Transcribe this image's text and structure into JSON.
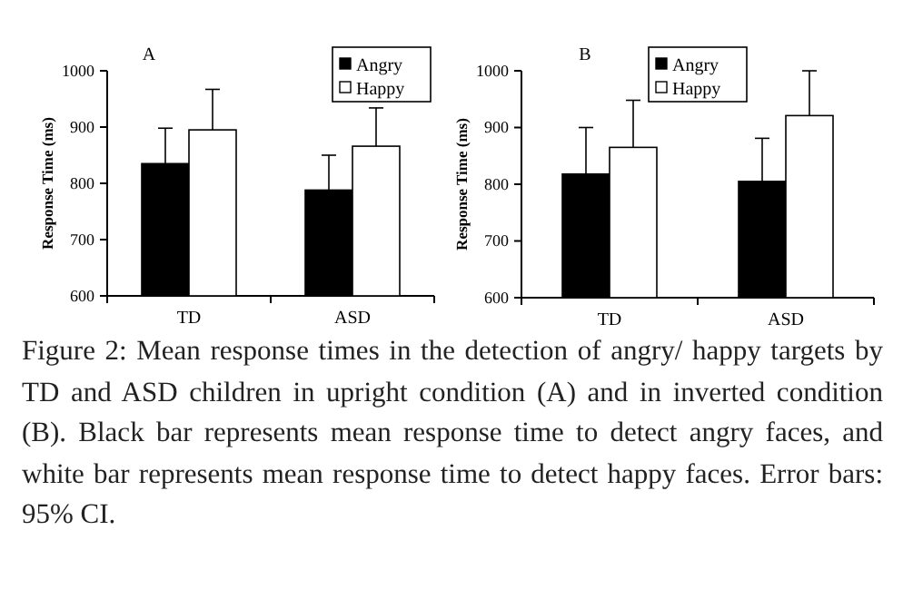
{
  "chart_data": [
    {
      "type": "bar",
      "title": "A",
      "ylabel": "Response Time (ms)",
      "categories": [
        "TD",
        "ASD"
      ],
      "series": [
        {
          "name": "Angry",
          "color": "#000000",
          "values": [
            835,
            788
          ],
          "errors": [
            [
              835,
              898
            ],
            [
              788,
              850
            ]
          ]
        },
        {
          "name": "Happy",
          "color": "#ffffff",
          "values": [
            895,
            866
          ],
          "errors": [
            [
              895,
              967
            ],
            [
              866,
              934
            ]
          ]
        }
      ],
      "ylim": [
        600,
        1000
      ],
      "yticks": [
        600,
        700,
        800,
        900,
        1000
      ],
      "grid": false,
      "legend": "top right"
    },
    {
      "type": "bar",
      "title": "B",
      "ylabel": "Response Time (ms)",
      "categories": [
        "TD",
        "ASD"
      ],
      "series": [
        {
          "name": "Angry",
          "color": "#000000",
          "values": [
            818,
            805
          ],
          "errors": [
            [
              818,
              900
            ],
            [
              805,
              881
            ]
          ]
        },
        {
          "name": "Happy",
          "color": "#ffffff",
          "values": [
            865,
            921
          ],
          "errors": [
            [
              865,
              948
            ],
            [
              921,
              1000
            ]
          ]
        }
      ],
      "ylim": [
        600,
        1000
      ],
      "yticks": [
        600,
        700,
        800,
        900,
        1000
      ],
      "grid": false,
      "legend": "top",
      "annotations": [
        "Figure 2: Mean response times in the detection of angry/ happy targets by TD and ASD children in upright condition (A) and in inverted condition (B). Black bar represents mean response time to detect angry faces, and white bar represents mean response time to detect happy faces. Error bars: 95% CI."
      ]
    }
  ]
}
